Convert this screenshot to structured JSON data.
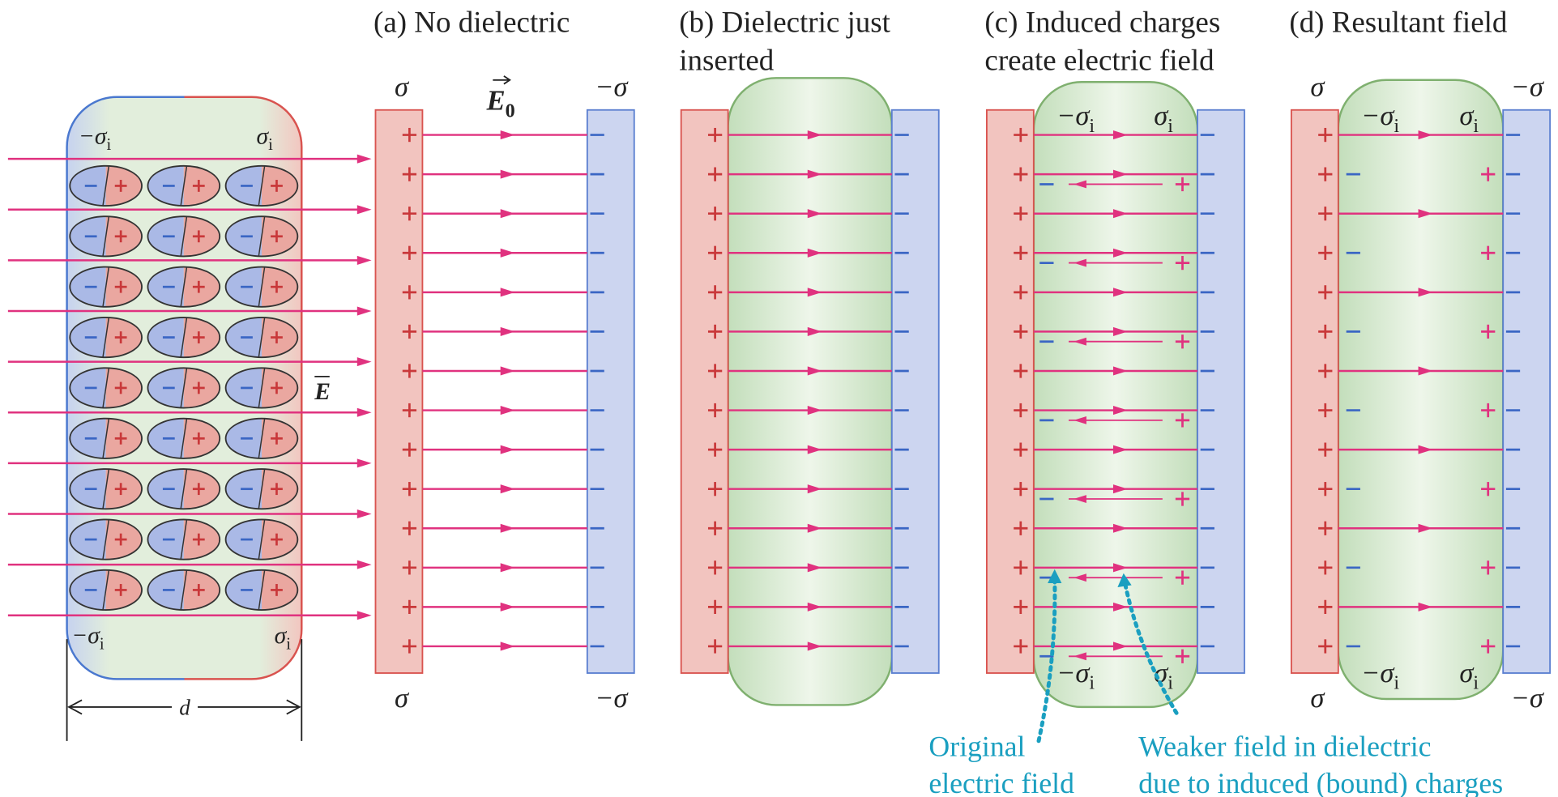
{
  "dielectric_slab": {
    "top_left": {
      "symbol": "−σ",
      "sub": "i"
    },
    "top_right": {
      "symbol": "σ",
      "sub": "i"
    },
    "bottom_left": {
      "symbol": "−σ",
      "sub": "i"
    },
    "bottom_right": {
      "symbol": "σ",
      "sub": "i"
    },
    "field_label": "E",
    "width_label": "d"
  },
  "panels": [
    {
      "title": [
        "(a) No dielectric"
      ],
      "field_label": {
        "symbol": "E",
        "sub": "0"
      },
      "plate_labels": {
        "top_left": "σ",
        "top_right": "−σ",
        "bottom_left": "σ",
        "bottom_right": "−σ"
      }
    },
    {
      "title": [
        "(b) Dielectric just",
        "inserted"
      ]
    },
    {
      "title": [
        "(c) Induced charges",
        "create electric field"
      ],
      "induced_labels": {
        "top_left": {
          "symbol": "−σ",
          "sub": "i"
        },
        "top_right": {
          "symbol": "σ",
          "sub": "i"
        },
        "bottom_left": {
          "symbol": "−σ",
          "sub": "i"
        },
        "bottom_right": {
          "symbol": "σ",
          "sub": "i"
        }
      },
      "annotations": [
        [
          "Original",
          "electric field"
        ],
        [
          "Weaker field in dielectric",
          "due to induced (bound) charges"
        ]
      ]
    },
    {
      "title": [
        "(d) Resultant field"
      ],
      "plate_labels": {
        "top_left": "σ",
        "top_right": "−σ",
        "bottom_left": "σ",
        "bottom_right": "−σ"
      },
      "induced_labels": {
        "top_left": {
          "symbol": "−σ",
          "sub": "i"
        },
        "top_right": {
          "symbol": "σ",
          "sub": "i"
        },
        "bottom_left": {
          "symbol": "−σ",
          "sub": "i"
        },
        "bottom_right": {
          "symbol": "σ",
          "sub": "i"
        }
      }
    }
  ]
}
